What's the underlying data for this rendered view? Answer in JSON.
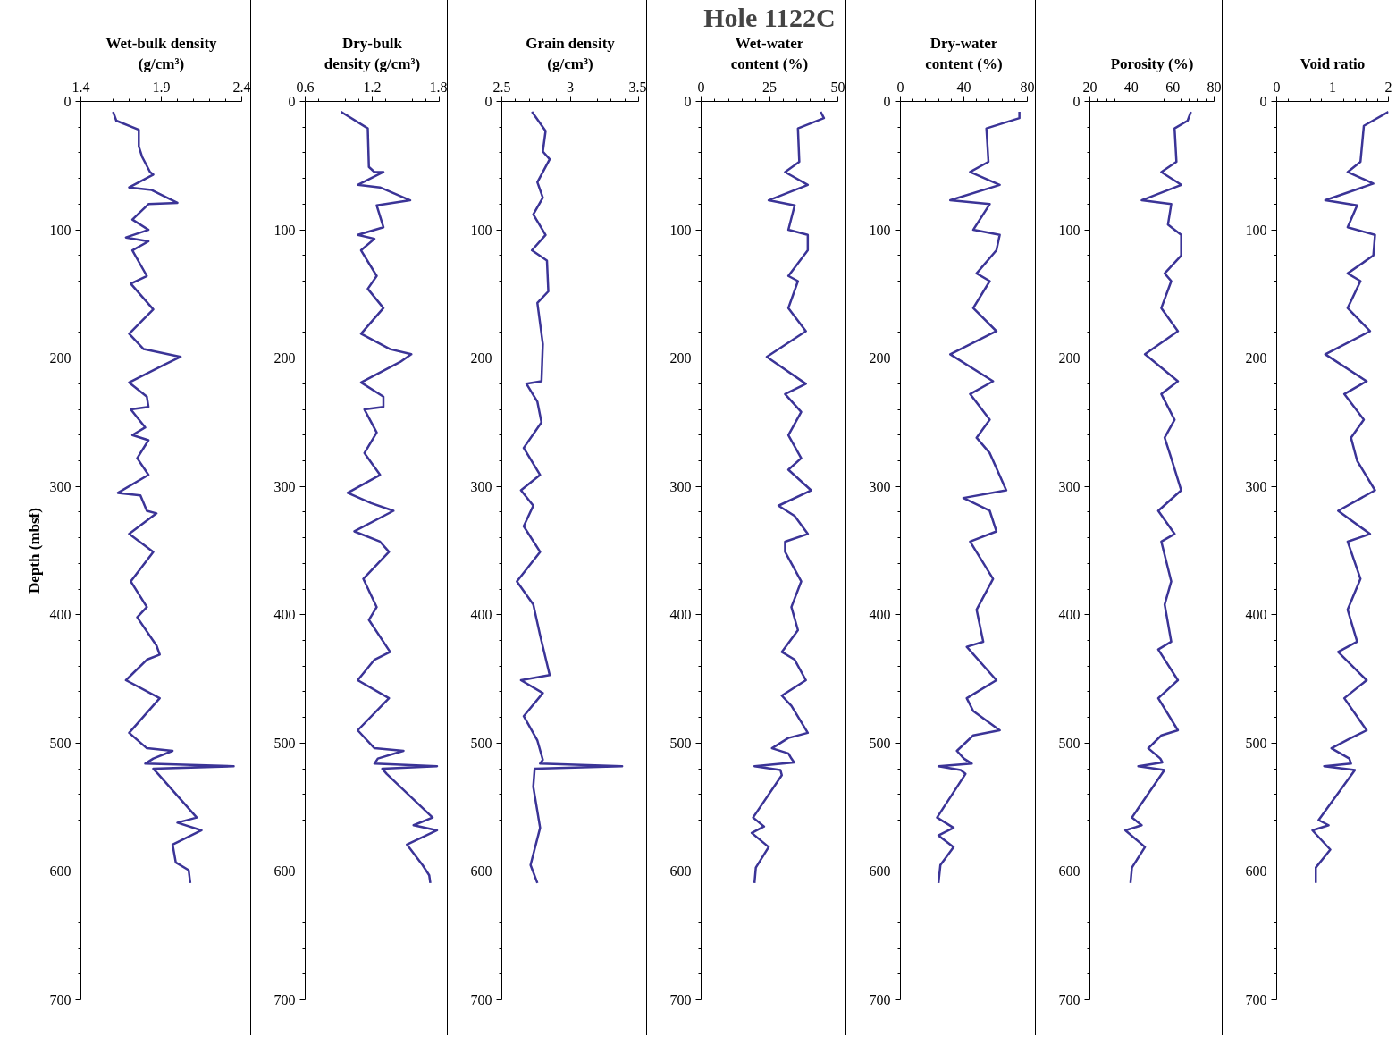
{
  "chart_data": [
    {
      "type": "line",
      "xlabel": "Wet-bulk density\n(g/cm³)",
      "ylabel": "Depth (mbsf)",
      "xlim": [
        1.4,
        2.4
      ],
      "xticks": [
        1.4,
        1.9,
        2.4
      ],
      "ylim": [
        700,
        0
      ],
      "yticks": [
        0,
        100,
        200,
        300,
        400,
        500,
        600,
        700
      ],
      "series": [
        {
          "color": "#3b3497",
          "x": [
            1.6,
            1.62,
            1.76,
            1.76,
            1.78,
            1.83,
            1.85,
            1.7,
            1.84,
            2.0,
            1.82,
            1.72,
            1.82,
            1.68,
            1.82,
            1.72,
            1.81,
            1.71,
            1.85,
            1.7,
            1.79,
            2.02,
            1.92,
            1.7,
            1.81,
            1.82,
            1.71,
            1.8,
            1.72,
            1.82,
            1.75,
            1.82,
            1.63,
            1.77,
            1.81,
            1.87,
            1.7,
            1.85,
            1.71,
            1.81,
            1.75,
            1.87,
            1.89,
            1.81,
            1.68,
            1.89,
            1.7,
            1.81,
            1.97,
            1.85,
            1.8,
            2.35,
            1.85,
            1.88,
            2.12,
            2.0,
            2.15,
            1.97,
            1.99,
            2.07,
            2.08
          ],
          "values": [
            8,
            15,
            22,
            35,
            43,
            55,
            57,
            67,
            69,
            79,
            80,
            92,
            100,
            106,
            109,
            116,
            136,
            142,
            162,
            181,
            193,
            199,
            205,
            219,
            230,
            238,
            240,
            254,
            260,
            264,
            278,
            291,
            305,
            307,
            319,
            321,
            337,
            351,
            374,
            394,
            402,
            424,
            431,
            435,
            451,
            465,
            492,
            504,
            506,
            512,
            516,
            518,
            520,
            524,
            558,
            562,
            568,
            579,
            593,
            599,
            609
          ]
        }
      ]
    },
    {
      "type": "line",
      "xlabel": "Dry-bulk\ndensity (g/cm³)",
      "xlim": [
        0.6,
        1.8
      ],
      "xticks": [
        0.6,
        1.2,
        1.8
      ],
      "ylim": [
        700,
        0
      ],
      "yticks": [
        0,
        100,
        200,
        300,
        400,
        500,
        600,
        700
      ],
      "series": [
        {
          "color": "#3b3497",
          "x": [
            0.92,
            1.16,
            1.17,
            1.22,
            1.3,
            1.07,
            1.27,
            1.54,
            1.24,
            1.3,
            1.07,
            1.22,
            1.1,
            1.24,
            1.16,
            1.3,
            1.1,
            1.36,
            1.55,
            1.45,
            1.1,
            1.3,
            1.3,
            1.13,
            1.24,
            1.13,
            1.27,
            0.98,
            1.19,
            1.39,
            1.04,
            1.27,
            1.35,
            1.12,
            1.24,
            1.17,
            1.36,
            1.22,
            1.07,
            1.35,
            1.07,
            1.22,
            1.48,
            1.25,
            1.22,
            1.78,
            1.29,
            1.33,
            1.74,
            1.57,
            1.78,
            1.51,
            1.65,
            1.71,
            1.72
          ],
          "values": [
            8,
            21,
            51,
            55,
            55,
            65,
            67,
            77,
            81,
            98,
            104,
            107,
            116,
            136,
            146,
            161,
            181,
            193,
            197,
            203,
            219,
            230,
            238,
            240,
            258,
            274,
            291,
            305,
            313,
            319,
            335,
            343,
            351,
            372,
            394,
            404,
            429,
            435,
            451,
            465,
            490,
            504,
            506,
            512,
            516,
            518,
            520,
            524,
            558,
            564,
            568,
            579,
            595,
            603,
            609
          ]
        }
      ]
    },
    {
      "type": "line",
      "xlabel": "Grain density\n(g/cm³)",
      "xlim": [
        2.5,
        3.5
      ],
      "xticks": [
        2.5,
        3,
        3.5
      ],
      "ylim": [
        700,
        0
      ],
      "yticks": [
        0,
        100,
        200,
        300,
        400,
        500,
        600,
        700
      ],
      "series": [
        {
          "color": "#3b3497",
          "x": [
            2.72,
            2.82,
            2.8,
            2.85,
            2.76,
            2.8,
            2.73,
            2.82,
            2.72,
            2.83,
            2.84,
            2.76,
            2.8,
            2.79,
            2.68,
            2.76,
            2.79,
            2.66,
            2.78,
            2.64,
            2.73,
            2.66,
            2.78,
            2.61,
            2.73,
            2.78,
            2.85,
            2.64,
            2.8,
            2.66,
            2.76,
            2.8,
            2.78,
            3.38,
            2.74,
            2.73,
            2.78,
            2.71,
            2.76
          ],
          "values": [
            8,
            23,
            39,
            45,
            63,
            75,
            88,
            104,
            116,
            124,
            148,
            157,
            189,
            218,
            220,
            234,
            250,
            270,
            291,
            303,
            315,
            331,
            351,
            374,
            392,
            416,
            447,
            451,
            461,
            479,
            498,
            513,
            516,
            518,
            520,
            534,
            566,
            595,
            609
          ]
        }
      ]
    },
    {
      "type": "line",
      "title": "Hole 1122C",
      "xlabel": "Wet-water\ncontent (%)",
      "xlim": [
        0,
        50
      ],
      "xticks": [
        0,
        25,
        50
      ],
      "ylim": [
        700,
        0
      ],
      "yticks": [
        0,
        100,
        200,
        300,
        400,
        500,
        600,
        700
      ],
      "series": [
        {
          "color": "#3b3497",
          "x": [
            43.7,
            44.9,
            35.4,
            35.9,
            30.7,
            39.0,
            24.7,
            34.2,
            31.9,
            39.0,
            39.0,
            31.9,
            35.4,
            31.9,
            38.3,
            24.0,
            38.3,
            30.7,
            36.6,
            31.9,
            36.6,
            31.9,
            40.2,
            28.3,
            34.2,
            39.0,
            30.7,
            30.7,
            36.6,
            33.0,
            35.4,
            29.5,
            34.2,
            38.3,
            29.5,
            33.0,
            39.0,
            31.9,
            25.9,
            31.9,
            33.0,
            34.0,
            19.5,
            29.0,
            29.5,
            19.0,
            23.0,
            18.5,
            24.7,
            20.0,
            19.5
          ],
          "values": [
            8,
            13,
            21,
            47,
            55,
            65,
            77,
            81,
            100,
            104,
            116,
            136,
            140,
            161,
            179,
            199,
            220,
            228,
            242,
            260,
            278,
            287,
            303,
            315,
            323,
            337,
            343,
            351,
            374,
            394,
            412,
            429,
            435,
            451,
            463,
            471,
            492,
            496,
            504,
            508,
            512,
            515,
            518,
            521,
            525,
            558,
            565,
            570,
            581,
            597,
            609
          ]
        }
      ]
    },
    {
      "type": "line",
      "xlabel": "Dry-water\ncontent (%)",
      "xlim": [
        0,
        80
      ],
      "xticks": [
        0,
        40,
        80
      ],
      "ylim": [
        700,
        0
      ],
      "yticks": [
        0,
        100,
        200,
        300,
        400,
        500,
        600,
        700
      ],
      "series": [
        {
          "color": "#3b3497",
          "x": [
            75,
            75,
            54.2,
            55.5,
            43.9,
            62.6,
            31.4,
            56.3,
            45.9,
            62.6,
            60.5,
            48,
            56.3,
            45.9,
            60.5,
            31.4,
            58.4,
            43.9,
            56.3,
            48,
            56.3,
            66.7,
            39.7,
            56.3,
            60.5,
            43.9,
            58.4,
            48,
            52.2,
            41.8,
            60.5,
            41.8,
            45.9,
            62.6,
            45.9,
            35.6,
            40,
            45,
            24,
            38,
            41,
            23.1,
            33.5,
            24,
            33.5,
            25.2,
            24
          ],
          "values": [
            8,
            13,
            21,
            47,
            55,
            65,
            77,
            80,
            100,
            104,
            116,
            134,
            140,
            161,
            179,
            197,
            218,
            228,
            248,
            262,
            274,
            303,
            309,
            319,
            335,
            343,
            372,
            396,
            421,
            425,
            451,
            465,
            475,
            490,
            494,
            506,
            512,
            516,
            518,
            521,
            524,
            558,
            566,
            572,
            581,
            595,
            609
          ]
        }
      ]
    },
    {
      "type": "line",
      "xlabel": "Porosity (%)",
      "xlim": [
        20,
        80
      ],
      "xticks": [
        20,
        40,
        60,
        80
      ],
      "ylim": [
        700,
        0
      ],
      "yticks": [
        0,
        100,
        200,
        300,
        400,
        500,
        600,
        700
      ],
      "series": [
        {
          "color": "#3b3497",
          "x": [
            68.8,
            67.2,
            60.9,
            61.8,
            54.5,
            64.1,
            45,
            59.3,
            57.7,
            64.1,
            64.1,
            56.1,
            59.3,
            54.5,
            62.5,
            46.6,
            62.5,
            54.5,
            60.9,
            56.1,
            59.3,
            64.1,
            53,
            60.9,
            54.5,
            59.3,
            56.1,
            59.3,
            53,
            62.5,
            53,
            62.5,
            54.5,
            48.2,
            54,
            55,
            43.4,
            56,
            40.3,
            45,
            37.1,
            46.6,
            40.3,
            39.6
          ],
          "values": [
            8,
            15,
            21,
            47,
            55,
            65,
            77,
            80,
            96,
            104,
            120,
            134,
            140,
            161,
            179,
            197,
            218,
            228,
            248,
            262,
            278,
            303,
            319,
            337,
            343,
            374,
            392,
            421,
            427,
            451,
            465,
            490,
            494,
            504,
            512,
            515,
            518,
            521,
            558,
            564,
            568,
            581,
            597,
            609
          ]
        }
      ]
    },
    {
      "type": "line",
      "xlabel": "Void ratio",
      "xlim": [
        0,
        2
      ],
      "xticks": [
        0,
        1,
        2
      ],
      "ylim": [
        700,
        0
      ],
      "yticks": [
        0,
        100,
        200,
        300,
        400,
        500,
        600,
        700
      ],
      "series": [
        {
          "color": "#3b3497",
          "x": [
            2.0,
            1.56,
            1.5,
            1.27,
            1.73,
            0.87,
            1.44,
            1.27,
            1.76,
            1.73,
            1.27,
            1.5,
            1.27,
            1.67,
            0.87,
            1.61,
            1.21,
            1.56,
            1.33,
            1.44,
            1.76,
            1.1,
            1.67,
            1.27,
            1.5,
            1.27,
            1.44,
            1.1,
            1.61,
            1.21,
            1.61,
            1.33,
            0.98,
            1.3,
            1.33,
            0.85,
            1.4,
            0.75,
            0.93,
            0.64,
            0.96,
            0.7,
            0.7
          ],
          "values": [
            8,
            19,
            47,
            55,
            64,
            77,
            81,
            98,
            104,
            120,
            134,
            140,
            161,
            179,
            197,
            218,
            228,
            248,
            262,
            280,
            303,
            319,
            337,
            343,
            372,
            396,
            421,
            429,
            451,
            465,
            490,
            496,
            504,
            512,
            516,
            518,
            521,
            560,
            564,
            568,
            583,
            597,
            609
          ]
        }
      ]
    }
  ]
}
